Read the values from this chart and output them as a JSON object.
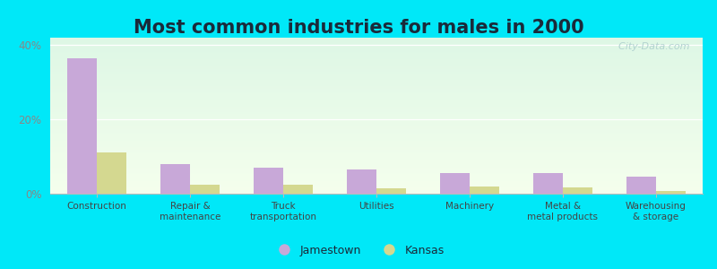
{
  "title": "Most common industries for males in 2000",
  "categories": [
    "Construction",
    "Repair &\nmaintenance",
    "Truck\ntransportation",
    "Utilities",
    "Machinery",
    "Metal &\nmetal products",
    "Warehousing\n& storage"
  ],
  "jamestown_values": [
    36.5,
    8.0,
    7.0,
    6.5,
    5.5,
    5.5,
    4.5
  ],
  "kansas_values": [
    11.0,
    2.5,
    2.5,
    1.5,
    2.0,
    1.8,
    0.8
  ],
  "jamestown_color": "#c8a8d8",
  "kansas_color": "#d4d890",
  "ylim": [
    0,
    42
  ],
  "yticks": [
    0,
    20,
    40
  ],
  "ytick_labels": [
    "0%",
    "20%",
    "40%"
  ],
  "legend_jamestown": "Jamestown",
  "legend_kansas": "Kansas",
  "outer_bg": "#00e8f8",
  "title_fontsize": 15,
  "tick_color": "#888888",
  "watermark": "  City-Data.com"
}
